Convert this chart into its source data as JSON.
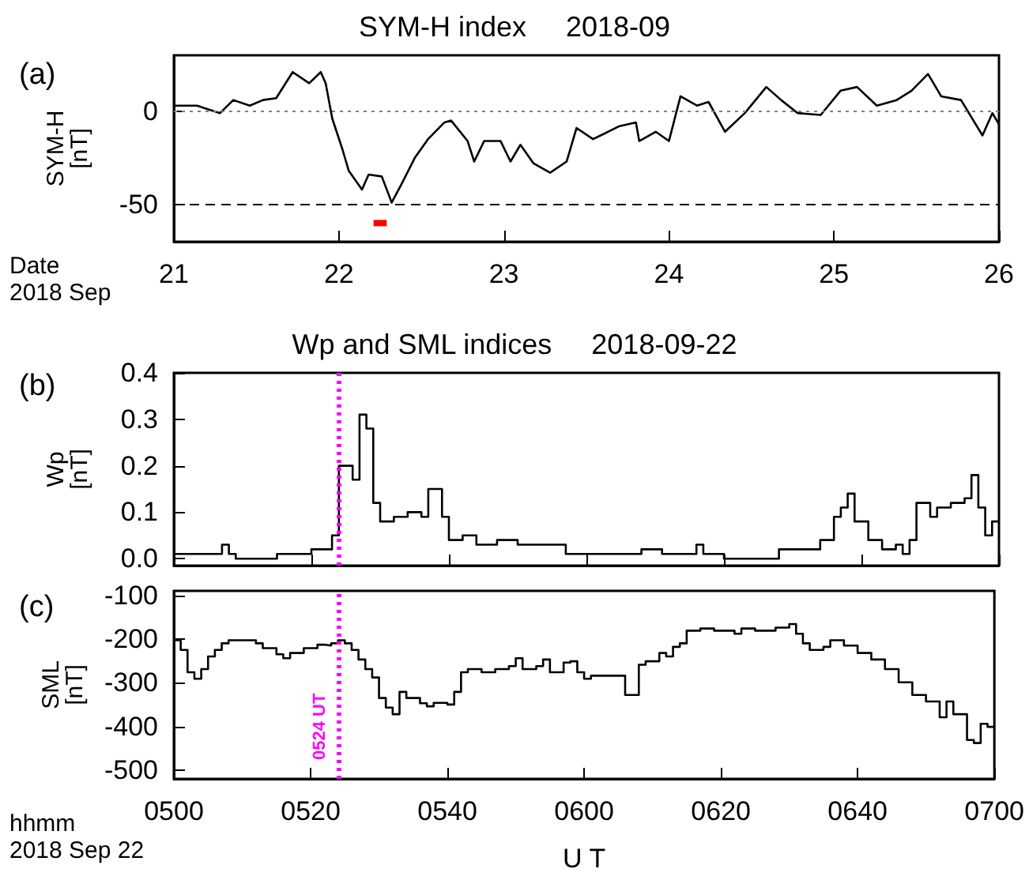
{
  "chart_data": [
    {
      "type": "line",
      "title": "SYM-H index     2018-09",
      "ylabel": "SYM-H\n[nT]",
      "annotations": [
        "(a)",
        "Date\n2018 Sep"
      ],
      "xlim": [
        21,
        26
      ],
      "xticks": [
        21,
        22,
        23,
        24,
        25,
        26
      ],
      "ylim": [
        -70,
        30
      ],
      "yticks": [
        -50,
        0
      ],
      "ref_lines": [
        {
          "axis": "y",
          "value": 0,
          "color": "#808080",
          "line_style": "dotted"
        },
        {
          "axis": "y",
          "value": -50,
          "color": "#000000",
          "line_style": "dashed"
        }
      ],
      "series": [
        {
          "color": "#000000",
          "x": [
            21.0,
            21.14,
            21.28,
            21.36,
            21.46,
            21.54,
            21.62,
            21.72,
            21.82,
            21.89,
            21.92,
            21.96,
            22.02,
            22.06,
            22.14,
            22.18,
            22.26,
            22.32,
            22.38,
            22.46,
            22.54,
            22.64,
            22.68,
            22.78,
            22.82,
            22.88,
            22.98,
            23.04,
            23.1,
            23.18,
            23.28,
            23.38,
            23.44,
            23.54,
            23.7,
            23.8,
            23.82,
            23.92,
            24.0,
            24.07,
            24.17,
            24.24,
            24.34,
            24.46,
            24.59,
            24.68,
            24.78,
            24.92,
            25.04,
            25.14,
            25.26,
            25.38,
            25.47,
            25.57,
            25.65,
            25.77,
            25.9,
            25.96,
            26.0
          ],
          "values": [
            3,
            3,
            -1,
            6,
            3,
            6,
            7,
            21,
            15,
            21,
            15,
            -4,
            -20,
            -32,
            -42,
            -34,
            -35,
            -49,
            -39,
            -25,
            -15,
            -6,
            -5,
            -16,
            -27,
            -16,
            -16,
            -27,
            -18,
            -28,
            -33,
            -27,
            -9,
            -15,
            -8,
            -6,
            -16,
            -11,
            -16,
            8,
            3,
            5,
            -11,
            -1,
            13,
            6,
            -1,
            -2,
            11,
            13,
            3,
            6,
            11,
            20,
            8,
            6,
            -13,
            -1,
            -7
          ]
        },
        {
          "color": "#ff0000",
          "x": [
            22.21,
            22.29
          ],
          "values": [
            -60,
            -60
          ]
        }
      ]
    },
    {
      "type": "step",
      "title": "Wp and SML indices     2018-09-22",
      "ylabel": "Wp\n[nT]",
      "annotations": [
        "(b)"
      ],
      "tick_labels": "y",
      "xlim": [
        "2018-09-22T05:00",
        "2018-09-22T07:00"
      ],
      "xticks": [
        {
          "value": "2018-09-22T05:00",
          "label": null
        },
        {
          "value": "2018-09-22T05:20",
          "label": null
        },
        {
          "value": "2018-09-22T05:40",
          "label": null
        },
        {
          "value": "2018-09-22T06:00",
          "label": null
        },
        {
          "value": "2018-09-22T06:20",
          "label": null
        },
        {
          "value": "2018-09-22T06:40",
          "label": null
        },
        {
          "value": "2018-09-22T07:00",
          "label": null
        }
      ],
      "ylim": [
        -0.015,
        0.4
      ],
      "yticks": [
        {
          "value": 0,
          "label": "0.0"
        },
        0.1,
        0.2,
        0.3,
        0.4
      ],
      "ref_lines": [
        {
          "axis": "x",
          "value": "2018-09-22T05:24",
          "color": "#ff00ff",
          "line_style": "dotted"
        }
      ],
      "series": [
        {
          "color": "#000000",
          "x": [
            "2018-09-22T05:00",
            "2018-09-22T05:07",
            "2018-09-22T05:08",
            "2018-09-22T05:09",
            "2018-09-22T05:15",
            "2018-09-22T05:18",
            "2018-09-22T05:20",
            "2018-09-22T05:22",
            "2018-09-22T05:23",
            "2018-09-22T05:24",
            "2018-09-22T05:26",
            "2018-09-22T05:27",
            "2018-09-22T05:28",
            "2018-09-22T05:29",
            "2018-09-22T05:30",
            "2018-09-22T05:32",
            "2018-09-22T05:34",
            "2018-09-22T05:36",
            "2018-09-22T05:37",
            "2018-09-22T05:39",
            "2018-09-22T05:40",
            "2018-09-22T05:42",
            "2018-09-22T05:44",
            "2018-09-22T05:47",
            "2018-09-22T05:50",
            "2018-09-22T05:54",
            "2018-09-22T05:57",
            "2018-09-22T06:01",
            "2018-09-22T06:06",
            "2018-09-22T06:08",
            "2018-09-22T06:11",
            "2018-09-22T06:16",
            "2018-09-22T06:17",
            "2018-09-22T06:20",
            "2018-09-22T06:24",
            "2018-09-22T06:28",
            "2018-09-22T06:32",
            "2018-09-22T06:34",
            "2018-09-22T06:36",
            "2018-09-22T06:37",
            "2018-09-22T06:38",
            "2018-09-22T06:39",
            "2018-09-22T06:41",
            "2018-09-22T06:43",
            "2018-09-22T06:45",
            "2018-09-22T06:46",
            "2018-09-22T06:47",
            "2018-09-22T06:48",
            "2018-09-22T06:50",
            "2018-09-22T06:51",
            "2018-09-22T06:53",
            "2018-09-22T06:55",
            "2018-09-22T06:56",
            "2018-09-22T06:57",
            "2018-09-22T06:58",
            "2018-09-22T06:59",
            "2018-09-22T07:00"
          ],
          "values": [
            0.01,
            0.01,
            0.03,
            0.01,
            0,
            0.01,
            0.01,
            0.02,
            0.02,
            0.05,
            0.2,
            0.17,
            0.31,
            0.28,
            0.12,
            0.08,
            0.09,
            0.1,
            0.09,
            0.15,
            0.09,
            0.04,
            0.05,
            0.03,
            0.04,
            0.03,
            0.03,
            0.01,
            0.01,
            0.01,
            0.02,
            0.01,
            0.03,
            0.01,
            0,
            0,
            0.02,
            0.02,
            0.04,
            0.09,
            0.11,
            0.14,
            0.08,
            0.04,
            0.02,
            0.03,
            0.01,
            0.04,
            0.12,
            0.09,
            0.11,
            0.12,
            0.13,
            0.18,
            0.11,
            0.05,
            0.08
          ]
        }
      ]
    },
    {
      "type": "step",
      "ylabel": "SML\n[nT]",
      "xlabel": "U T",
      "annotations": [
        "(c)",
        "hhmm\n2018 Sep 22"
      ],
      "xlim": [
        "2018-09-22T05:00",
        "2018-09-22T07:00"
      ],
      "xticks": [
        {
          "value": "2018-09-22T05:00",
          "label": "0500"
        },
        {
          "value": "2018-09-22T05:20",
          "label": "0520"
        },
        {
          "value": "2018-09-22T05:40",
          "label": "0540"
        },
        {
          "value": "2018-09-22T06:00",
          "label": "0600"
        },
        {
          "value": "2018-09-22T06:20",
          "label": "0620"
        },
        {
          "value": "2018-09-22T06:40",
          "label": "0640"
        },
        {
          "value": "2018-09-22T07:00",
          "label": "0700"
        }
      ],
      "ylim": [
        -520,
        -90
      ],
      "yticks": [
        -500,
        -400,
        -300,
        -200,
        -100
      ],
      "ref_lines": [
        {
          "axis": "x",
          "value": "2018-09-22T05:24",
          "label": "0524 UT",
          "color": "#ff00ff",
          "line_style": "dotted"
        }
      ],
      "series": [
        {
          "color": "#000000",
          "x": [
            "2018-09-22T05:00",
            "2018-09-22T05:01",
            "2018-09-22T05:02",
            "2018-09-22T05:03",
            "2018-09-22T05:04",
            "2018-09-22T05:05",
            "2018-09-22T05:06",
            "2018-09-22T05:07",
            "2018-09-22T05:08",
            "2018-09-22T05:10",
            "2018-09-22T05:12",
            "2018-09-22T05:13",
            "2018-09-22T05:15",
            "2018-09-22T05:16",
            "2018-09-22T05:17",
            "2018-09-22T05:19",
            "2018-09-22T05:21",
            "2018-09-22T05:22",
            "2018-09-22T05:23",
            "2018-09-22T05:24",
            "2018-09-22T05:25",
            "2018-09-22T05:26",
            "2018-09-22T05:27",
            "2018-09-22T05:28",
            "2018-09-22T05:29",
            "2018-09-22T05:30",
            "2018-09-22T05:31",
            "2018-09-22T05:32",
            "2018-09-22T05:33",
            "2018-09-22T05:34",
            "2018-09-22T05:36",
            "2018-09-22T05:37",
            "2018-09-22T05:38",
            "2018-09-22T05:40",
            "2018-09-22T05:41",
            "2018-09-22T05:42",
            "2018-09-22T05:43",
            "2018-09-22T05:45",
            "2018-09-22T05:47",
            "2018-09-22T05:49",
            "2018-09-22T05:50",
            "2018-09-22T05:51",
            "2018-09-22T05:53",
            "2018-09-22T05:54",
            "2018-09-22T05:55",
            "2018-09-22T05:57",
            "2018-09-22T05:58",
            "2018-09-22T05:59",
            "2018-09-22T06:00",
            "2018-09-22T06:01",
            "2018-09-22T06:05",
            "2018-09-22T06:06",
            "2018-09-22T06:08",
            "2018-09-22T06:09",
            "2018-09-22T06:11",
            "2018-09-22T06:12",
            "2018-09-22T06:13",
            "2018-09-22T06:14",
            "2018-09-22T06:15",
            "2018-09-22T06:17",
            "2018-09-22T06:19",
            "2018-09-22T06:22",
            "2018-09-22T06:23",
            "2018-09-22T06:25",
            "2018-09-22T06:28",
            "2018-09-22T06:30",
            "2018-09-22T06:31",
            "2018-09-22T06:32",
            "2018-09-22T06:33",
            "2018-09-22T06:35",
            "2018-09-22T06:36",
            "2018-09-22T06:38",
            "2018-09-22T06:40",
            "2018-09-22T06:42",
            "2018-09-22T06:44",
            "2018-09-22T06:46",
            "2018-09-22T06:48",
            "2018-09-22T06:50",
            "2018-09-22T06:52",
            "2018-09-22T06:53",
            "2018-09-22T06:54",
            "2018-09-22T06:56",
            "2018-09-22T06:57",
            "2018-09-22T06:58",
            "2018-09-22T06:59",
            "2018-09-22T07:00"
          ],
          "values": [
            -203,
            -203,
            -225,
            -276,
            -291,
            -269,
            -240,
            -225,
            -210,
            -203,
            -203,
            -210,
            -221,
            -235,
            -244,
            -232,
            -221,
            -213,
            -215,
            -210,
            -203,
            -210,
            -225,
            -247,
            -269,
            -288,
            -335,
            -357,
            -372,
            -321,
            -335,
            -347,
            -354,
            -346,
            -350,
            -321,
            -276,
            -269,
            -276,
            -269,
            -262,
            -244,
            -269,
            -262,
            -247,
            -276,
            -254,
            -251,
            -276,
            -291,
            -284,
            -284,
            -328,
            -259,
            -251,
            -232,
            -240,
            -218,
            -210,
            -181,
            -176,
            -181,
            -188,
            -176,
            -181,
            -174,
            -166,
            -188,
            -210,
            -225,
            -218,
            -203,
            -215,
            -232,
            -247,
            -269,
            -299,
            -328,
            -343,
            -379,
            -343,
            -372,
            -431,
            -438,
            -394,
            -401
          ]
        }
      ]
    }
  ]
}
